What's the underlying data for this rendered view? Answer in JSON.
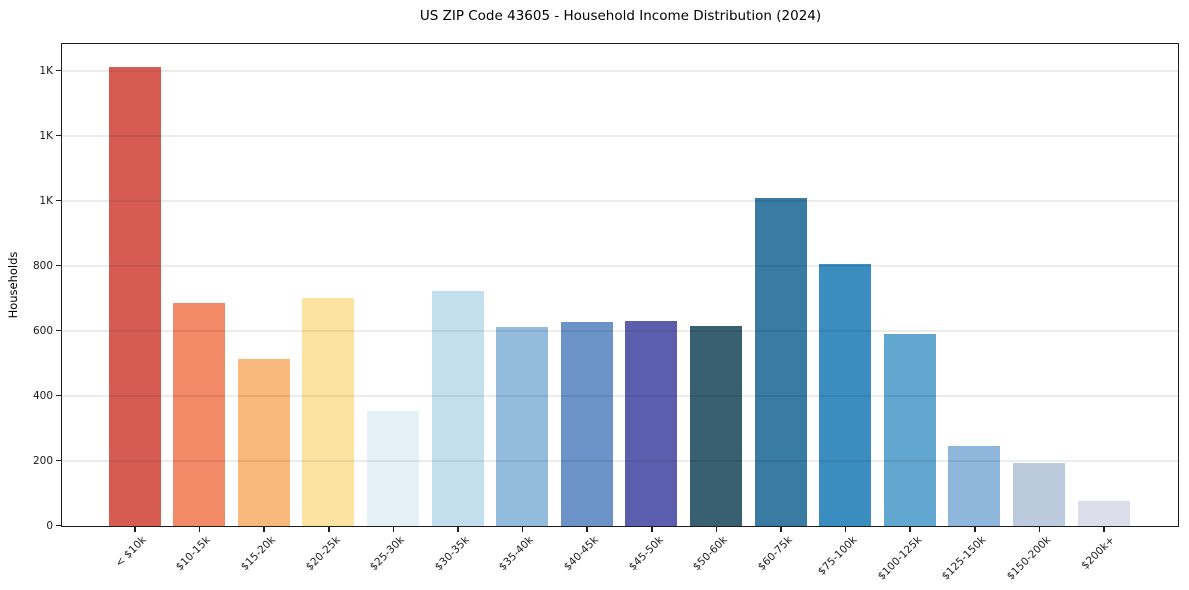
{
  "chart_data": {
    "type": "bar",
    "title": "US ZIP Code 43605 - Household Income Distribution (2024)",
    "xlabel": "",
    "ylabel": "Households",
    "categories": [
      "< $10k",
      "$10-15k",
      "$15-20k",
      "$20-25k",
      "$25-30k",
      "$30-35k",
      "$35-40k",
      "$40-45k",
      "$45-50k",
      "$50-60k",
      "$60-75k",
      "$75-100k",
      "$100-125k",
      "$125-150k",
      "$150-200k",
      "$200k+"
    ],
    "values": [
      1412,
      686,
      514,
      702,
      353,
      724,
      611,
      628,
      632,
      615,
      1010,
      805,
      590,
      245,
      193,
      77
    ],
    "bar_colors": [
      "#d65c52",
      "#f28a67",
      "#fab97c",
      "#fce3a1",
      "#e4f1f6",
      "#c3dfee",
      "#93bcdc",
      "#6b93c7",
      "#5a5ead",
      "#396070",
      "#3a7ba3",
      "#3b8dc0",
      "#62a7cf",
      "#8fb6db",
      "#bccade",
      "#dcdcea"
    ],
    "ylim": [
      0,
      1480
    ],
    "ytick_values": [
      0,
      200,
      400,
      600,
      800,
      1000,
      1200,
      1400
    ],
    "ytick_labels": [
      "0",
      "200",
      "400",
      "600",
      "800",
      "1K",
      "1K",
      "1K"
    ],
    "grid": "horizontal",
    "legend": "none",
    "colors": {
      "axis": "#1d1d1d",
      "gridline": "#e6e6e6",
      "background": "#ffffff",
      "text": "#000000"
    }
  }
}
